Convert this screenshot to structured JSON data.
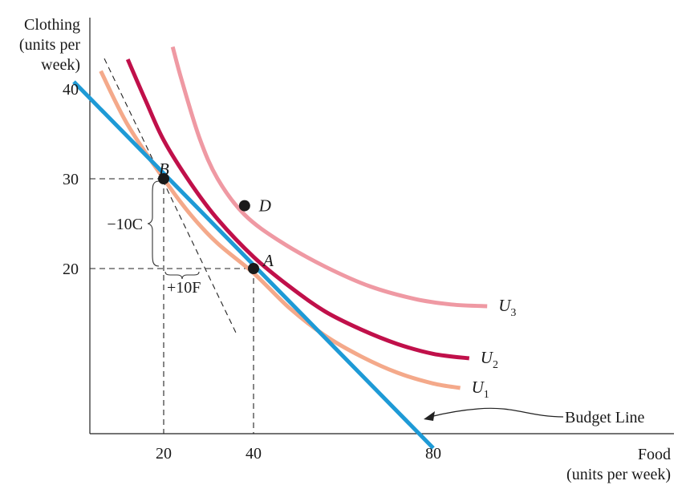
{
  "chart_data": {
    "type": "line",
    "ylabel_lines": [
      "Clothing",
      "(units per",
      "week)"
    ],
    "xlabel_lines": [
      "Food",
      "(units per week)"
    ],
    "y_ticks": [
      {
        "value": 40,
        "label": "40"
      },
      {
        "value": 30,
        "label": "30"
      },
      {
        "value": 20,
        "label": "20"
      }
    ],
    "x_ticks": [
      {
        "value": 20,
        "label": "20"
      },
      {
        "value": 40,
        "label": "40"
      },
      {
        "value": 80,
        "label": "80"
      }
    ],
    "budget_line": {
      "label": "Budget Line",
      "color": "#1e9ad6",
      "points": [
        [
          0,
          40.8
        ],
        [
          80,
          0
        ]
      ]
    },
    "indifference_curves": [
      {
        "name": "U",
        "sub": "1",
        "color": "#f4a98a",
        "points": [
          [
            6,
            42
          ],
          [
            12,
            36
          ],
          [
            20,
            30
          ],
          [
            26,
            26
          ],
          [
            32,
            22.8
          ],
          [
            40,
            19.5
          ],
          [
            48,
            15.6
          ],
          [
            56,
            12.5
          ],
          [
            64,
            10.2
          ],
          [
            72,
            8.4
          ],
          [
            80,
            7.2
          ],
          [
            86,
            6.7
          ]
        ]
      },
      {
        "name": "U",
        "sub": "2",
        "color": "#c0104a",
        "points": [
          [
            12,
            43.3
          ],
          [
            16,
            38.7
          ],
          [
            20,
            34.3
          ],
          [
            26,
            29.5
          ],
          [
            32,
            25.5
          ],
          [
            40,
            21.3
          ],
          [
            48,
            18
          ],
          [
            56,
            15.2
          ],
          [
            64,
            13.2
          ],
          [
            72,
            11.6
          ],
          [
            80,
            10.5
          ],
          [
            88,
            10
          ]
        ]
      },
      {
        "name": "U",
        "sub": "3",
        "color": "#ef99a3",
        "points": [
          [
            22,
            44.7
          ],
          [
            24,
            41
          ],
          [
            28,
            34.5
          ],
          [
            32,
            30
          ],
          [
            38,
            26
          ],
          [
            46,
            23
          ],
          [
            56,
            20.2
          ],
          [
            66,
            18
          ],
          [
            76,
            16.6
          ],
          [
            84,
            16
          ],
          [
            92,
            15.8
          ]
        ]
      }
    ],
    "points": [
      {
        "label": "B",
        "x": 20,
        "y": 30
      },
      {
        "label": "A",
        "x": 40,
        "y": 20
      },
      {
        "label": "D",
        "x": 38,
        "y": 27
      }
    ],
    "annotations": [
      {
        "text": "−10C",
        "desc": "vertical brace from 30 to 20 at Food 20"
      },
      {
        "text": "+10F",
        "desc": "horizontal brace from 20 to 30 at Clothing 20"
      }
    ]
  }
}
